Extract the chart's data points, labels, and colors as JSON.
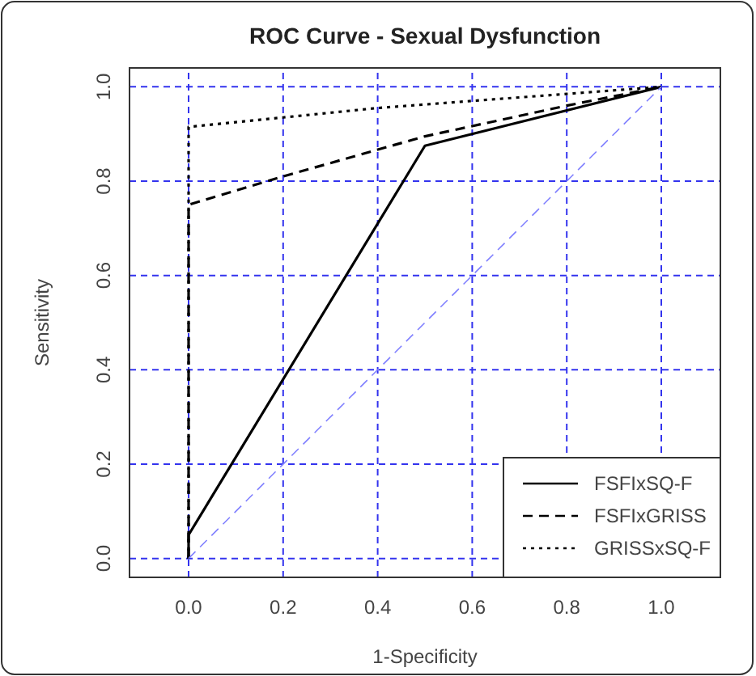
{
  "chart_data": {
    "type": "line",
    "title": "ROC Curve - Sexual Dysfunction",
    "xlabel": "1-Specificity",
    "ylabel": "Sensitivity",
    "xlim": [
      -0.125,
      1.125
    ],
    "ylim": [
      -0.04,
      1.04
    ],
    "xticks": [
      {
        "value": 0,
        "label": "0.0"
      },
      {
        "value": 0.2,
        "label": "0.2"
      },
      {
        "value": 0.4,
        "label": "0.4"
      },
      {
        "value": 0.6,
        "label": "0.6"
      },
      {
        "value": 0.8,
        "label": "0.8"
      },
      {
        "value": 1,
        "label": "1.0"
      }
    ],
    "yticks": [
      {
        "value": 0,
        "label": "0.0"
      },
      {
        "value": 0.2,
        "label": "0.2"
      },
      {
        "value": 0.4,
        "label": "0.4"
      },
      {
        "value": 0.6,
        "label": "0.6"
      },
      {
        "value": 0.8,
        "label": "0.8"
      },
      {
        "value": 1,
        "label": "1.0"
      }
    ],
    "grid": true,
    "legend": "bottom right",
    "series": [
      {
        "name": "FSFIxSQ-F",
        "color": "#000000",
        "line_style": "solid",
        "x": [
          0,
          0,
          0.5,
          1
        ],
        "values": [
          0,
          0.05,
          0.875,
          1
        ]
      },
      {
        "name": "FSFIxGRISS",
        "color": "#000000",
        "line_style": "dashed",
        "x": [
          0,
          0,
          0.2,
          0.5,
          0.8,
          1
        ],
        "values": [
          0,
          0.75,
          0.81,
          0.895,
          0.96,
          1
        ]
      },
      {
        "name": "GRISSxSQ-F",
        "color": "#000000",
        "line_style": "dotted",
        "x": [
          0,
          0,
          0.2,
          0.4,
          0.6,
          0.8,
          1
        ],
        "values": [
          0,
          0.915,
          0.935,
          0.955,
          0.97,
          0.985,
          1
        ]
      },
      {
        "color": "#8080ff",
        "line_style": "dashed",
        "x": [
          0,
          1
        ],
        "values": [
          0,
          1
        ]
      }
    ]
  }
}
